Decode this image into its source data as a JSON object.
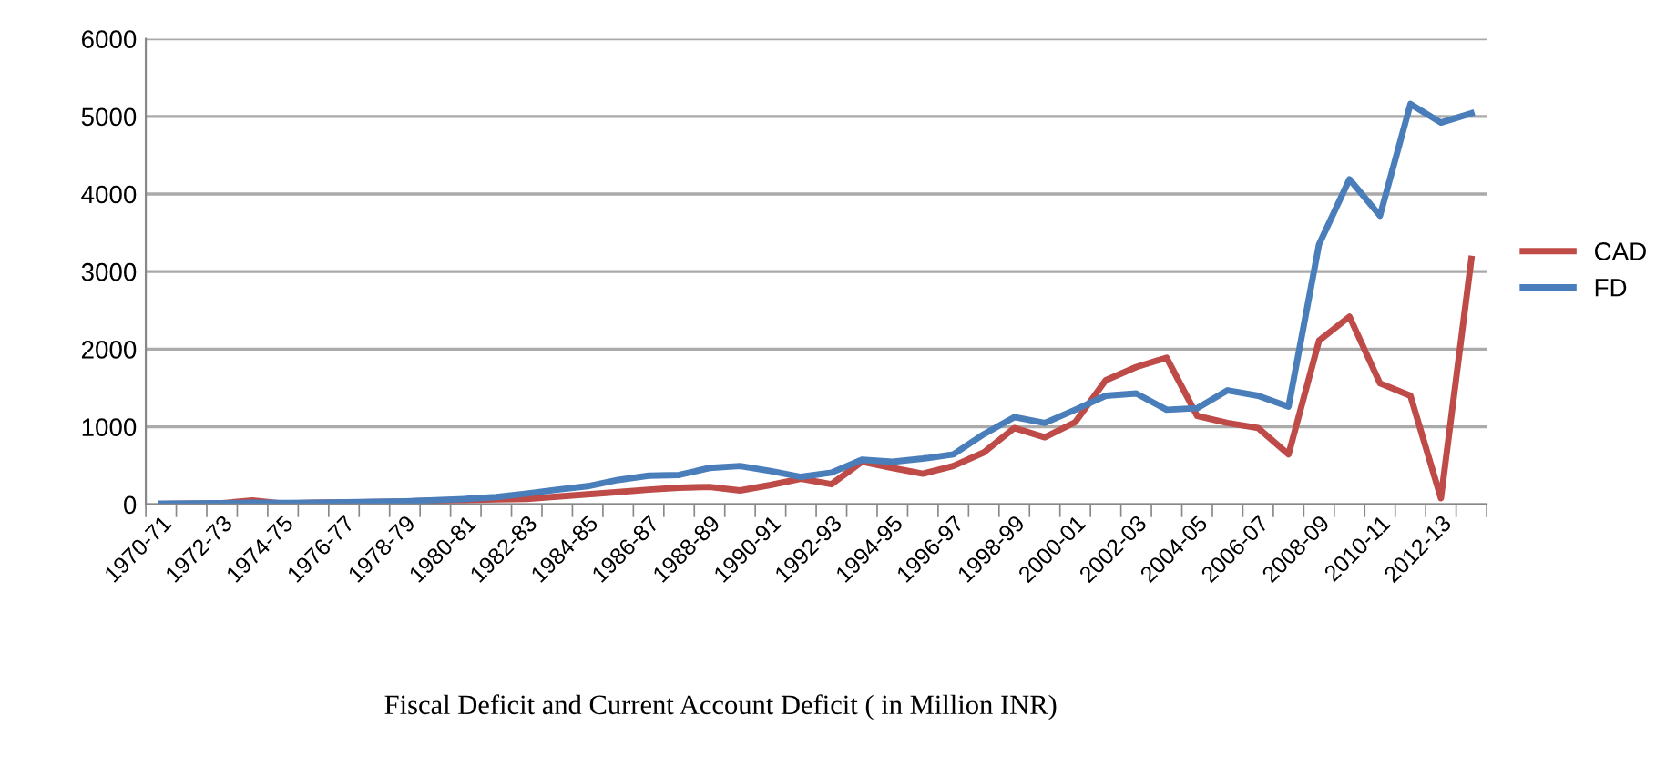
{
  "chart_data": {
    "type": "line",
    "title": "Fiscal Deficit and Current Account Deficit ( in Million INR)",
    "categories": [
      "1970-71",
      null,
      "1972-73",
      null,
      "1974-75",
      null,
      "1976-77",
      null,
      "1978-79",
      null,
      "1980-81",
      null,
      "1982-83",
      null,
      "1984-85",
      null,
      "1986-87",
      null,
      "1988-89",
      null,
      "1990-91",
      null,
      "1992-93",
      null,
      "1994-95",
      null,
      "1996-97",
      null,
      "1998-99",
      null,
      "2000-01",
      null,
      "2002-03",
      null,
      "2004-05",
      null,
      "2006-07",
      null,
      "2008-09",
      null,
      "2010-11",
      null,
      "2012-13",
      null
    ],
    "series": [
      {
        "name": "CAD",
        "color": "#be4b48",
        "values": [
          5,
          10,
          15,
          50,
          10,
          20,
          25,
          30,
          35,
          50,
          55,
          65,
          70,
          100,
          130,
          160,
          190,
          215,
          225,
          180,
          250,
          330,
          260,
          550,
          470,
          395,
          495,
          670,
          985,
          865,
          1060,
          1600,
          1770,
          1890,
          1140,
          1050,
          985,
          645,
          2110,
          2420,
          1560,
          1400,
          80,
          3165
        ]
      },
      {
        "name": "FD",
        "color": "#4a7ebb",
        "values": [
          10,
          12,
          15,
          20,
          18,
          22,
          28,
          32,
          40,
          55,
          70,
          95,
          140,
          190,
          235,
          315,
          370,
          380,
          470,
          495,
          430,
          355,
          410,
          575,
          550,
          590,
          645,
          905,
          1125,
          1050,
          1220,
          1400,
          1430,
          1220,
          1240,
          1470,
          1400,
          1260,
          3350,
          4190,
          3720,
          5160,
          4920,
          5040
        ]
      }
    ],
    "ylim": [
      0,
      6000
    ],
    "yticks": [
      0,
      1000,
      2000,
      3000,
      4000,
      5000,
      6000
    ],
    "grid": "y",
    "legend": "right"
  }
}
